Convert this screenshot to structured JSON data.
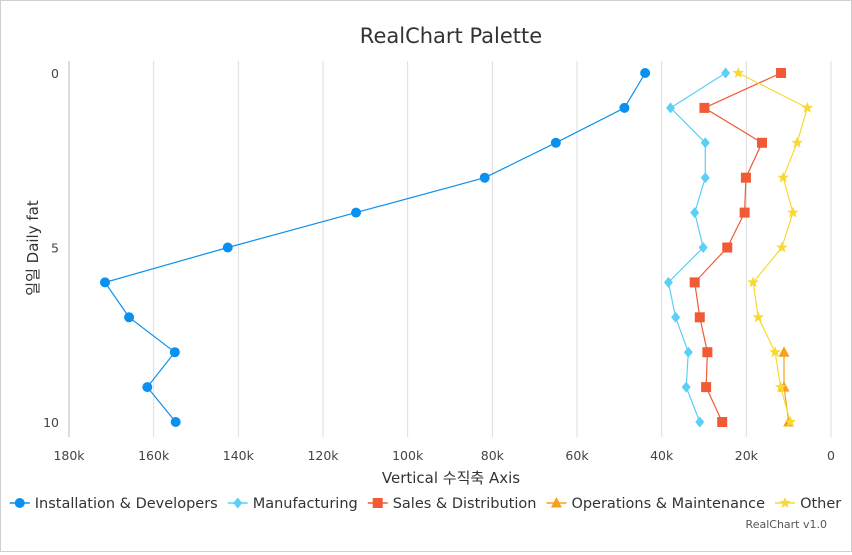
{
  "chart_data": {
    "type": "line",
    "title": "RealChart Palette",
    "xlabel": "Vertical 수직축 Axis",
    "ylabel": "일일 Daily fat",
    "credit": "RealChart v1.0",
    "categories": [
      0,
      1,
      2,
      3,
      4,
      5,
      6,
      7,
      8,
      9,
      10
    ],
    "category_ticks": [
      "0",
      "5",
      "10"
    ],
    "value_axis": {
      "reversed": true,
      "min": 0,
      "max": 180000,
      "ticks": [
        {
          "value": 180000,
          "label": "180k"
        },
        {
          "value": 160000,
          "label": "160k"
        },
        {
          "value": 140000,
          "label": "140k"
        },
        {
          "value": 120000,
          "label": "120k"
        },
        {
          "value": 100000,
          "label": "100k"
        },
        {
          "value": 80000,
          "label": "80k"
        },
        {
          "value": 60000,
          "label": "60k"
        },
        {
          "value": 40000,
          "label": "40k"
        },
        {
          "value": 20000,
          "label": "20k"
        },
        {
          "value": 0,
          "label": "0"
        }
      ]
    },
    "grid": true,
    "legend_position": "bottom",
    "series": [
      {
        "name": "Installation & Developers",
        "color": "#0a91f0",
        "marker": "circle",
        "values": [
          43900,
          48800,
          65000,
          81800,
          112200,
          142500,
          171500,
          165800,
          155000,
          161500,
          154800
        ]
      },
      {
        "name": "Manufacturing",
        "color": "#5ccff4",
        "marker": "diamond",
        "values": [
          24900,
          37900,
          29700,
          29700,
          32200,
          30200,
          38400,
          36700,
          33700,
          34200,
          31000
        ]
      },
      {
        "name": "Sales & Distribution",
        "color": "#f15a35",
        "marker": "square",
        "values": [
          11800,
          29900,
          16300,
          20100,
          20400,
          24500,
          32200,
          31000,
          29200,
          29500,
          25700
        ]
      },
      {
        "name": "Operations & Maintenance",
        "color": "#f6a11c",
        "marker": "triangle",
        "values": [
          null,
          null,
          null,
          null,
          null,
          null,
          null,
          null,
          11100,
          11100,
          10000
        ]
      },
      {
        "name": "Other",
        "color": "#f8d933",
        "marker": "star",
        "values": [
          21900,
          5600,
          8000,
          11300,
          9000,
          11600,
          18400,
          17200,
          13200,
          11900,
          9600
        ]
      }
    ]
  }
}
